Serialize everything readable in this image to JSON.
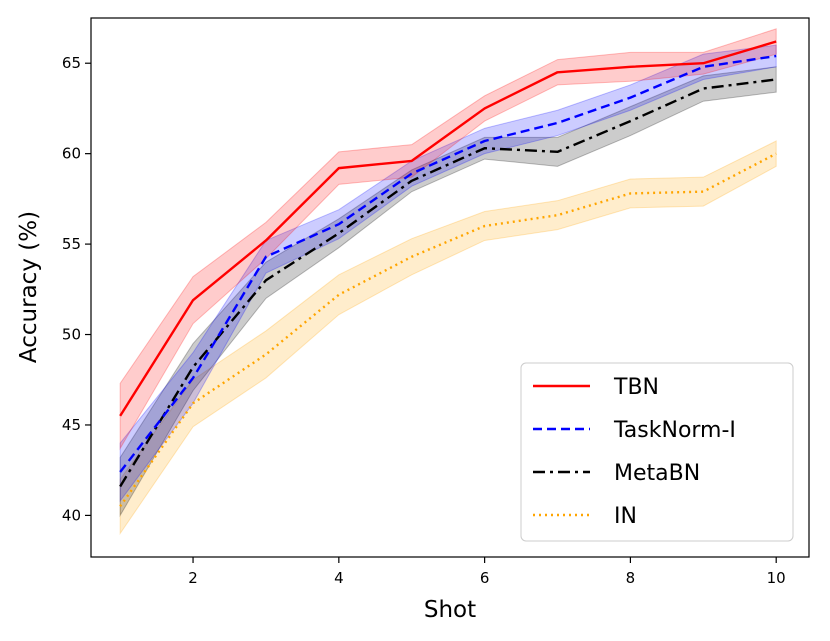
{
  "chart_data": {
    "type": "line",
    "title": "",
    "xlabel": "Shot",
    "ylabel": "Accuracy (%)",
    "x": [
      1,
      2,
      3,
      4,
      5,
      6,
      7,
      8,
      9,
      10
    ],
    "xlim": [
      0.6,
      10.45
    ],
    "ylim": [
      37.7,
      67.5
    ],
    "xticks": [
      2,
      4,
      6,
      8,
      10
    ],
    "yticks": [
      40,
      45,
      50,
      55,
      60,
      65
    ],
    "grid": false,
    "legend_position": "bottom-right",
    "series": [
      {
        "name": "IN",
        "color": "#ffa500",
        "style": "dotted",
        "values": [
          40.5,
          46.2,
          48.9,
          52.2,
          54.3,
          56.0,
          56.6,
          57.8,
          57.9,
          60.0
        ],
        "lower": [
          39.0,
          44.9,
          47.6,
          51.1,
          53.3,
          55.2,
          55.8,
          57.0,
          57.1,
          59.3
        ],
        "upper": [
          42.0,
          47.5,
          50.2,
          53.3,
          55.3,
          56.8,
          57.4,
          58.6,
          58.7,
          60.7
        ]
      },
      {
        "name": "MetaBN",
        "color": "#000000",
        "style": "dashdot",
        "values": [
          41.6,
          48.2,
          53.0,
          55.6,
          58.5,
          60.3,
          60.1,
          61.8,
          63.6,
          64.1
        ],
        "lower": [
          40.0,
          46.9,
          52.0,
          54.8,
          57.9,
          59.7,
          59.3,
          61.0,
          62.9,
          63.4
        ],
        "upper": [
          43.2,
          49.5,
          54.0,
          56.4,
          59.1,
          60.9,
          60.9,
          62.6,
          64.3,
          64.8
        ]
      },
      {
        "name": "TaskNorm-I",
        "color": "#0000ff",
        "style": "dashed",
        "values": [
          42.4,
          47.6,
          54.3,
          56.1,
          58.9,
          60.7,
          61.7,
          63.1,
          64.8,
          65.4
        ],
        "lower": [
          40.8,
          46.2,
          53.4,
          55.3,
          58.2,
          60.0,
          61.0,
          62.4,
          64.1,
          64.8
        ],
        "upper": [
          44.0,
          49.0,
          55.2,
          56.9,
          59.6,
          61.4,
          62.4,
          63.8,
          65.5,
          66.0
        ]
      },
      {
        "name": "TBN",
        "color": "#ff0000",
        "style": "solid",
        "values": [
          45.5,
          51.9,
          55.2,
          59.2,
          59.6,
          62.5,
          64.5,
          64.8,
          65.0,
          66.2
        ],
        "lower": [
          43.7,
          50.6,
          54.2,
          58.3,
          58.7,
          61.8,
          63.8,
          64.0,
          64.4,
          65.5
        ],
        "upper": [
          47.3,
          53.2,
          56.2,
          60.1,
          60.5,
          63.2,
          65.2,
          65.6,
          65.6,
          66.9
        ]
      }
    ],
    "legend_order": [
      "TBN",
      "TaskNorm-I",
      "MetaBN",
      "IN"
    ]
  }
}
